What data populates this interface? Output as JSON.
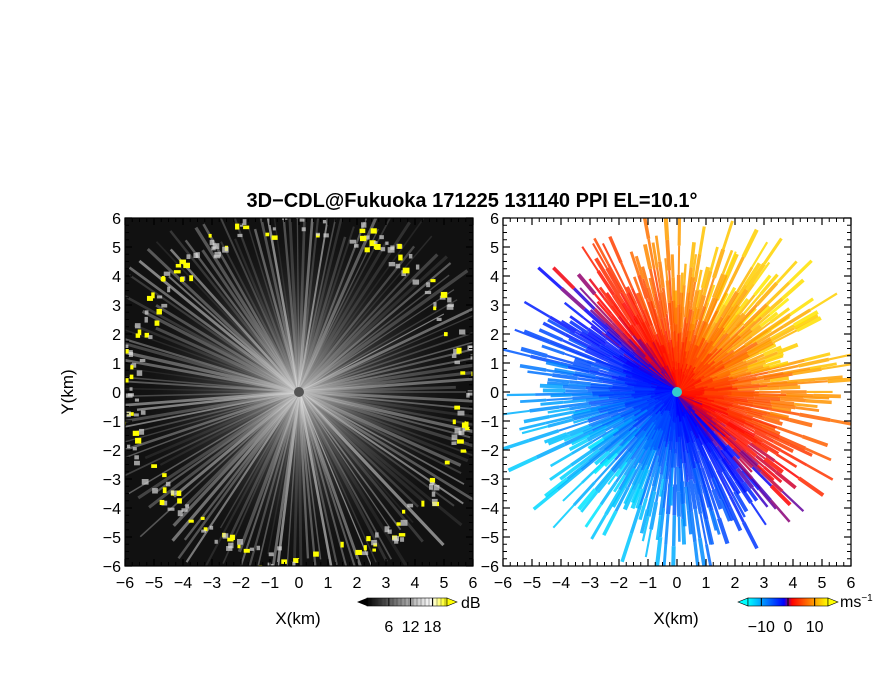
{
  "figure": {
    "title": "3D−CDL@Fukuoka 171225 131140 PPI EL=10.1°"
  },
  "chart_data": [
    {
      "type": "heatmap",
      "name": "reflectivity",
      "xlabel": "X(km)",
      "ylabel": "Y(km)",
      "xlim": [
        -6,
        6
      ],
      "ylim": [
        -6,
        6
      ],
      "xticks": [
        -6,
        -5,
        -4,
        -3,
        -2,
        -1,
        0,
        1,
        2,
        3,
        4,
        5,
        6
      ],
      "yticks": [
        -6,
        -5,
        -4,
        -3,
        -2,
        -1,
        0,
        1,
        2,
        3,
        4,
        5,
        6
      ],
      "xtick_labels": [
        "−6",
        "−5",
        "−4",
        "−3",
        "−2",
        "−1",
        "0",
        "1",
        "2",
        "3",
        "4",
        "5",
        "6"
      ],
      "ytick_labels": [
        "−6",
        "−5",
        "−4",
        "−3",
        "−2",
        "−1",
        "0",
        "1",
        "2",
        "3",
        "4",
        "5",
        "6"
      ],
      "colorbar": {
        "unit": "dB",
        "ticks": [
          6,
          12,
          18
        ],
        "tick_labels": [
          "6",
          "12",
          "18"
        ],
        "range": [
          0,
          22
        ],
        "colors": [
          "#000000",
          "#ffffff",
          "#ffff00"
        ]
      },
      "background": "#111111",
      "grid": false
    },
    {
      "type": "heatmap",
      "name": "doppler_velocity",
      "xlabel": "X(km)",
      "ylabel": "",
      "xlim": [
        -6,
        6
      ],
      "ylim": [
        -6,
        6
      ],
      "xticks": [
        -6,
        -5,
        -4,
        -3,
        -2,
        -1,
        0,
        1,
        2,
        3,
        4,
        5,
        6
      ],
      "yticks": [
        -6,
        -5,
        -4,
        -3,
        -2,
        -1,
        0,
        1,
        2,
        3,
        4,
        5,
        6
      ],
      "xtick_labels": [
        "−6",
        "−5",
        "−4",
        "−3",
        "−2",
        "−1",
        "0",
        "1",
        "2",
        "3",
        "4",
        "5",
        "6"
      ],
      "ytick_labels": [
        "−6",
        "−5",
        "−4",
        "−3",
        "−2",
        "−1",
        "0",
        "1",
        "2",
        "3",
        "4",
        "5",
        "6"
      ],
      "colorbar": {
        "unit": "ms",
        "unit_exponent": "−1",
        "ticks": [
          -10,
          0,
          10
        ],
        "tick_labels": [
          "−10",
          "0",
          "10"
        ],
        "range": [
          -15,
          15
        ],
        "colors": [
          "#00ffff",
          "#0000ff",
          "#ff0000",
          "#ffff00"
        ]
      },
      "background": "#ffffff",
      "grid": false
    }
  ]
}
